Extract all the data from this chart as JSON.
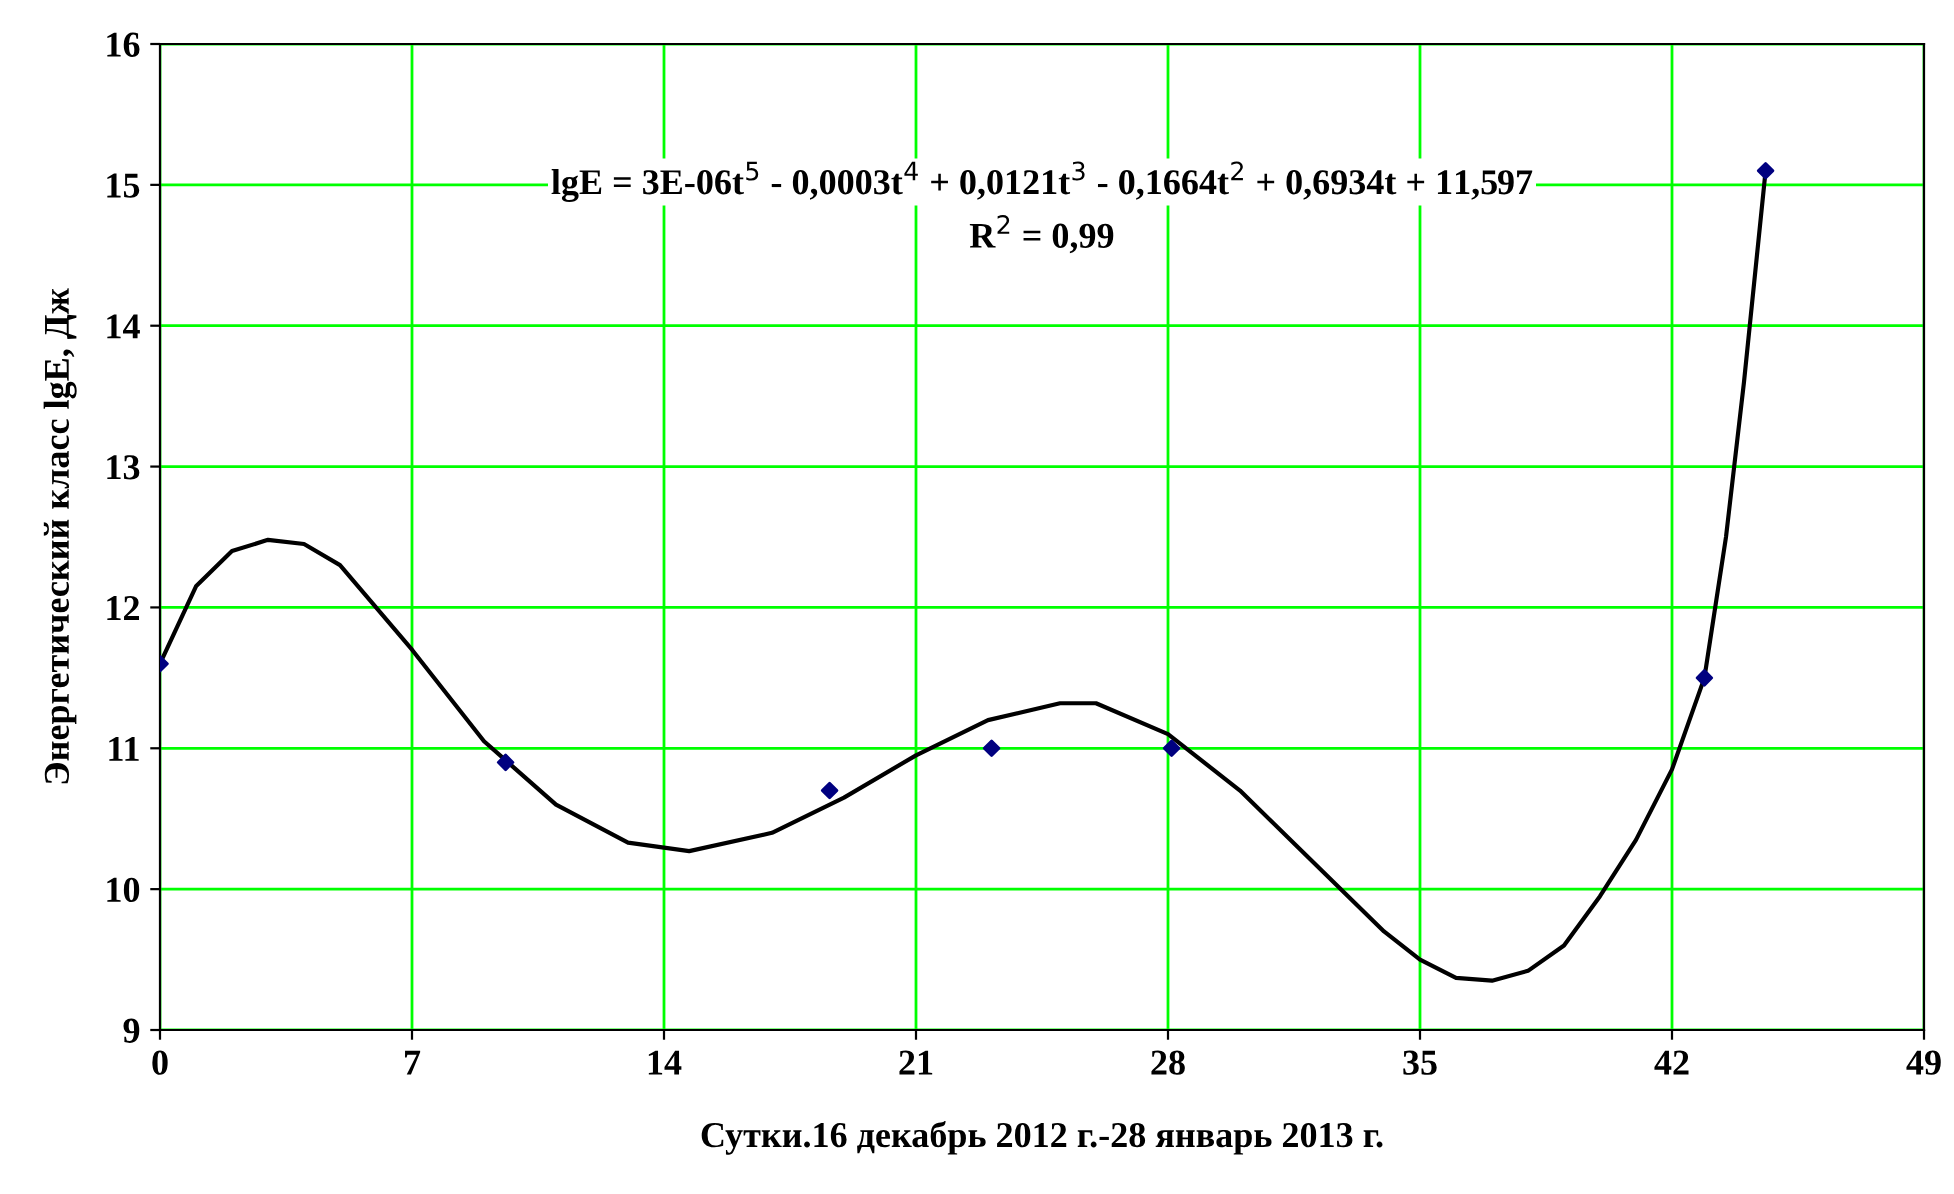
{
  "chart_data": {
    "type": "scatter",
    "xlabel": "Сутки.16 декабрь 2012 г.-28 январь 2013 г.",
    "ylabel": "Энергетический класс lgE, Дж",
    "annotations": [
      "lgE = 3E-06t$^{5}$ - 0,0003t$^{4}$ + 0,0121t$^{3}$ - 0,1664t$^{2}$ + 0,6934t + 11,597",
      "R$^{2}$ = 0,99"
    ],
    "series": [
      {
        "color": "#000080",
        "marker": "diamond",
        "x": [
          0,
          9.6,
          18.6,
          23.1,
          28.1,
          42.9,
          44.6
        ],
        "values": [
          11.6,
          10.9,
          10.7,
          11.0,
          11.0,
          11.5,
          15.1
        ]
      },
      {
        "type": "line",
        "color": "#000000",
        "marker": "none",
        "line_style": "solid",
        "x": [
          0,
          1,
          2,
          3,
          4,
          5,
          7,
          9,
          11,
          13,
          14.7,
          17,
          19,
          21,
          23,
          25,
          26,
          28,
          30,
          32,
          34,
          35,
          36,
          37,
          38,
          39,
          40,
          41,
          42,
          42.9,
          43.5,
          44,
          44.6
        ],
        "values": [
          11.6,
          12.15,
          12.4,
          12.48,
          12.45,
          12.3,
          11.7,
          11.05,
          10.6,
          10.33,
          10.27,
          10.4,
          10.65,
          10.95,
          11.2,
          11.32,
          11.32,
          11.1,
          10.7,
          10.2,
          9.7,
          9.5,
          9.37,
          9.35,
          9.42,
          9.6,
          9.95,
          10.35,
          10.85,
          11.5,
          12.5,
          13.6,
          15.1
        ]
      }
    ],
    "xlim": [
      0,
      49
    ],
    "ylim": [
      9,
      16
    ],
    "xticks": [
      0,
      7,
      14,
      21,
      28,
      35,
      42,
      49
    ],
    "yticks": [
      9,
      10,
      11,
      12,
      13,
      14,
      15,
      16
    ],
    "grid": true,
    "legend": false
  }
}
